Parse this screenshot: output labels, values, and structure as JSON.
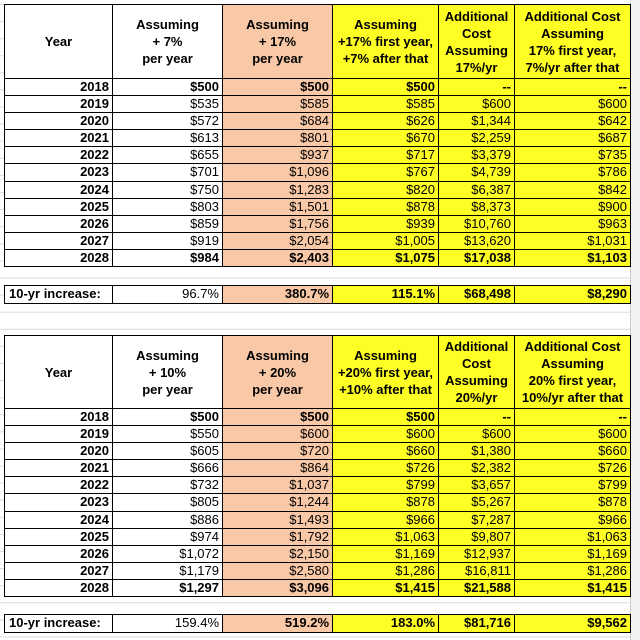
{
  "tables": [
    {
      "headers": [
        [
          "Year"
        ],
        [
          "Assuming",
          "+ 7%",
          "per year"
        ],
        [
          "Assuming",
          "+ 17%",
          "per year"
        ],
        [
          "Assuming",
          "+17% first year,",
          "+7% after that"
        ],
        [
          "Additional",
          "Cost",
          "Assuming",
          "17%/yr"
        ],
        [
          "Additional Cost",
          "Assuming",
          "17% first year,",
          "7%/yr after that"
        ]
      ],
      "rows": [
        [
          "2018",
          "$500",
          "$500",
          "$500",
          "--",
          "--"
        ],
        [
          "2019",
          "$535",
          "$585",
          "$585",
          "$600",
          "$600"
        ],
        [
          "2020",
          "$572",
          "$684",
          "$626",
          "$1,344",
          "$642"
        ],
        [
          "2021",
          "$613",
          "$801",
          "$670",
          "$2,259",
          "$687"
        ],
        [
          "2022",
          "$655",
          "$937",
          "$717",
          "$3,379",
          "$735"
        ],
        [
          "2023",
          "$701",
          "$1,096",
          "$767",
          "$4,739",
          "$786"
        ],
        [
          "2024",
          "$750",
          "$1,283",
          "$820",
          "$6,387",
          "$842"
        ],
        [
          "2025",
          "$803",
          "$1,501",
          "$878",
          "$8,373",
          "$900"
        ],
        [
          "2026",
          "$859",
          "$1,756",
          "$939",
          "$10,760",
          "$963"
        ],
        [
          "2027",
          "$919",
          "$2,054",
          "$1,005",
          "$13,620",
          "$1,031"
        ],
        [
          "2028",
          "$984",
          "$2,403",
          "$1,075",
          "$17,038",
          "$1,103"
        ]
      ],
      "summary": [
        "10-yr increase:",
        "96.7%",
        "380.7%",
        "115.1%",
        "$68,498",
        "$8,290"
      ]
    },
    {
      "headers": [
        [
          "Year"
        ],
        [
          "Assuming",
          "+ 10%",
          "per year"
        ],
        [
          "Assuming",
          "+ 20%",
          "per year"
        ],
        [
          "Assuming",
          "+20% first year,",
          "+10% after that"
        ],
        [
          "Additional",
          "Cost",
          "Assuming",
          "20%/yr"
        ],
        [
          "Additional Cost",
          "Assuming",
          "20% first year,",
          "10%/yr after that"
        ]
      ],
      "rows": [
        [
          "2018",
          "$500",
          "$500",
          "$500",
          "--",
          "--"
        ],
        [
          "2019",
          "$550",
          "$600",
          "$600",
          "$600",
          "$600"
        ],
        [
          "2020",
          "$605",
          "$720",
          "$660",
          "$1,380",
          "$660"
        ],
        [
          "2021",
          "$666",
          "$864",
          "$726",
          "$2,382",
          "$726"
        ],
        [
          "2022",
          "$732",
          "$1,037",
          "$799",
          "$3,657",
          "$799"
        ],
        [
          "2023",
          "$805",
          "$1,244",
          "$878",
          "$5,267",
          "$878"
        ],
        [
          "2024",
          "$886",
          "$1,493",
          "$966",
          "$7,287",
          "$966"
        ],
        [
          "2025",
          "$974",
          "$1,792",
          "$1,063",
          "$9,807",
          "$1,063"
        ],
        [
          "2026",
          "$1,072",
          "$2,150",
          "$1,169",
          "$12,937",
          "$1,169"
        ],
        [
          "2027",
          "$1,179",
          "$2,580",
          "$1,286",
          "$16,811",
          "$1,286"
        ],
        [
          "2028",
          "$1,297",
          "$3,096",
          "$1,415",
          "$21,588",
          "$1,415"
        ]
      ],
      "summary": [
        "10-yr increase:",
        "159.4%",
        "519.2%",
        "183.0%",
        "$81,716",
        "$9,562"
      ]
    }
  ]
}
